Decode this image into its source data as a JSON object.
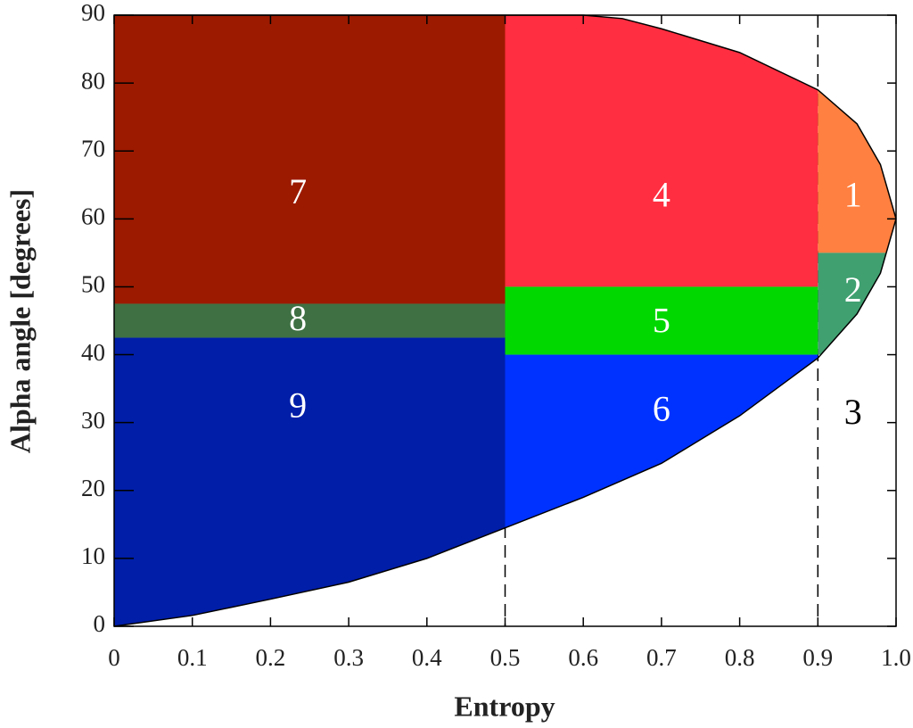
{
  "chart_data": {
    "type": "zone-plane",
    "x_label": "Entropy",
    "y_label": "Alpha angle [degrees]",
    "xlim": [
      0,
      1
    ],
    "ylim": [
      0,
      90
    ],
    "xticks": [
      0,
      0.1,
      0.2,
      0.3,
      0.4,
      0.5,
      0.6,
      0.7,
      0.8,
      0.9,
      {
        "value": 1,
        "label": "1.0"
      }
    ],
    "yticks": [
      0,
      10,
      20,
      30,
      40,
      50,
      60,
      70,
      80,
      90
    ],
    "dividers": [
      0.5,
      0.9
    ],
    "upper_boundary": {
      "x": [
        0,
        0.5,
        0.6,
        0.65,
        0.7,
        0.8,
        0.9,
        0.95,
        0.98,
        1
      ],
      "y": [
        90,
        90,
        90,
        89.5,
        88,
        84.5,
        79,
        74,
        68,
        60
      ]
    },
    "lower_boundary": {
      "x": [
        0,
        0.1,
        0.2,
        0.3,
        0.4,
        0.5,
        0.6,
        0.7,
        0.8,
        0.9,
        0.95,
        0.98,
        1
      ],
      "y": [
        0,
        1.6,
        4,
        6.5,
        10,
        14.5,
        19,
        24,
        31,
        39.5,
        46,
        52,
        60
      ]
    },
    "zones": [
      {
        "label": "1",
        "x": [
          0.9,
          1
        ],
        "y": [
          55,
          90
        ],
        "color": "#ff8040"
      },
      {
        "label": "2",
        "x": [
          0.9,
          1
        ],
        "y": [
          40,
          55
        ],
        "color": "#40a070"
      },
      {
        "label": "3",
        "x": [
          0.9,
          1
        ],
        "y": [
          0,
          40
        ],
        "color": "#ffffff"
      },
      {
        "label": "4",
        "x": [
          0.5,
          0.9
        ],
        "y": [
          50,
          90
        ],
        "color": "#ff2e40"
      },
      {
        "label": "5",
        "x": [
          0.5,
          0.9
        ],
        "y": [
          40,
          50
        ],
        "color": "#00d800"
      },
      {
        "label": "6",
        "x": [
          0.5,
          0.9
        ],
        "y": [
          0,
          40
        ],
        "color": "#0032ff"
      },
      {
        "label": "7",
        "x": [
          0,
          0.5
        ],
        "y": [
          47.5,
          90
        ],
        "color": "#9c1a00"
      },
      {
        "label": "8",
        "x": [
          0,
          0.5
        ],
        "y": [
          42.5,
          47.5
        ],
        "color": "#3e7043"
      },
      {
        "label": "9",
        "x": [
          0,
          0.5
        ],
        "y": [
          0,
          42.5
        ],
        "color": "#001ea8"
      }
    ]
  }
}
